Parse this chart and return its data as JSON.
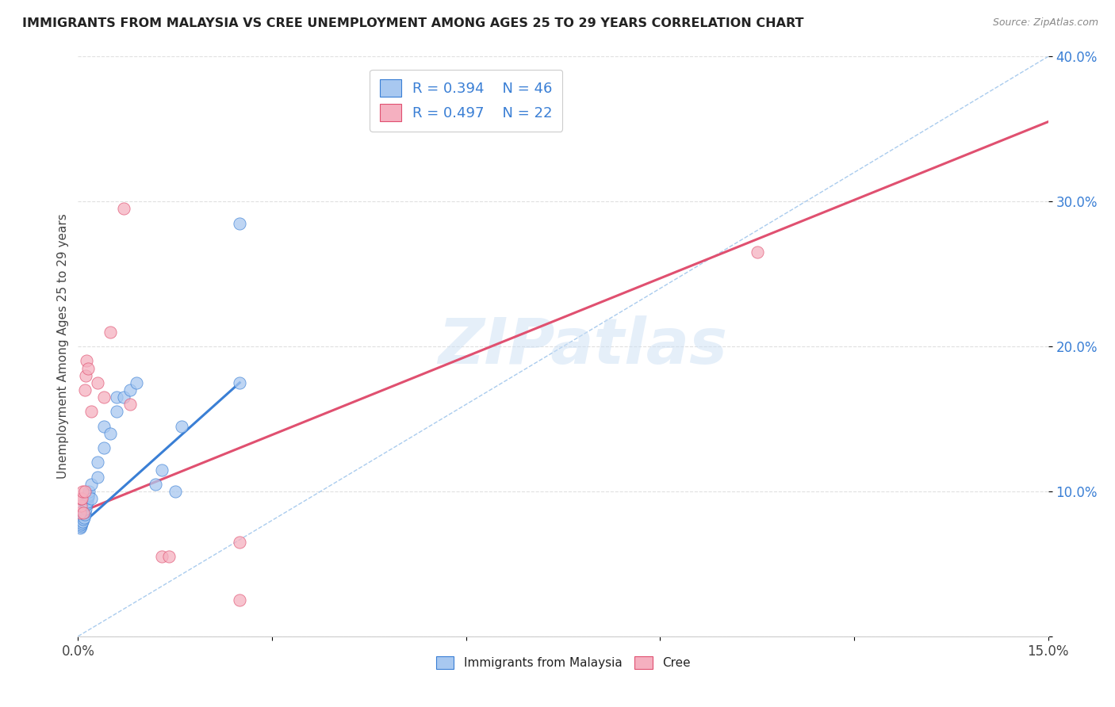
{
  "title": "IMMIGRANTS FROM MALAYSIA VS CREE UNEMPLOYMENT AMONG AGES 25 TO 29 YEARS CORRELATION CHART",
  "source": "Source: ZipAtlas.com",
  "ylabel": "Unemployment Among Ages 25 to 29 years",
  "x_min": 0.0,
  "x_max": 0.15,
  "y_min": 0.0,
  "y_max": 0.4,
  "x_ticks": [
    0.0,
    0.03,
    0.06,
    0.09,
    0.12,
    0.15
  ],
  "y_ticks": [
    0.0,
    0.1,
    0.2,
    0.3,
    0.4
  ],
  "blue_scatter_x": [
    0.0003,
    0.0003,
    0.0004,
    0.0004,
    0.0005,
    0.0005,
    0.0005,
    0.0006,
    0.0006,
    0.0007,
    0.0007,
    0.0008,
    0.0008,
    0.0009,
    0.001,
    0.001,
    0.001,
    0.0011,
    0.0011,
    0.0012,
    0.0012,
    0.0013,
    0.0013,
    0.0014,
    0.0015,
    0.0015,
    0.0016,
    0.0017,
    0.002,
    0.002,
    0.003,
    0.003,
    0.004,
    0.004,
    0.005,
    0.006,
    0.006,
    0.007,
    0.008,
    0.009,
    0.012,
    0.013,
    0.015,
    0.016,
    0.025,
    0.025
  ],
  "blue_scatter_y": [
    0.075,
    0.078,
    0.076,
    0.079,
    0.077,
    0.08,
    0.082,
    0.078,
    0.081,
    0.079,
    0.083,
    0.081,
    0.084,
    0.082,
    0.084,
    0.087,
    0.09,
    0.086,
    0.09,
    0.088,
    0.092,
    0.091,
    0.095,
    0.093,
    0.096,
    0.098,
    0.097,
    0.1,
    0.095,
    0.105,
    0.11,
    0.12,
    0.13,
    0.145,
    0.14,
    0.155,
    0.165,
    0.165,
    0.17,
    0.175,
    0.105,
    0.115,
    0.1,
    0.145,
    0.175,
    0.285
  ],
  "pink_scatter_x": [
    0.0003,
    0.0004,
    0.0005,
    0.0006,
    0.0007,
    0.0008,
    0.001,
    0.001,
    0.0012,
    0.0013,
    0.0015,
    0.002,
    0.003,
    0.004,
    0.005,
    0.007,
    0.008,
    0.013,
    0.014,
    0.025,
    0.025,
    0.105
  ],
  "pink_scatter_y": [
    0.085,
    0.09,
    0.095,
    0.095,
    0.1,
    0.085,
    0.1,
    0.17,
    0.18,
    0.19,
    0.185,
    0.155,
    0.175,
    0.165,
    0.21,
    0.295,
    0.16,
    0.055,
    0.055,
    0.065,
    0.025,
    0.265
  ],
  "blue_line_x": [
    0.0,
    0.025
  ],
  "blue_line_y": [
    0.075,
    0.175
  ],
  "pink_line_x": [
    0.0,
    0.15
  ],
  "pink_line_y": [
    0.085,
    0.355
  ],
  "diag_line_x": [
    0.0,
    0.15
  ],
  "diag_line_y": [
    0.0,
    0.4
  ],
  "blue_scatter_color": "#a8c8f0",
  "blue_line_color": "#3a7fd5",
  "pink_scatter_color": "#f5b0c0",
  "pink_line_color": "#e05070",
  "diag_line_color": "#aaccee",
  "r_blue": "0.394",
  "n_blue": "46",
  "r_pink": "0.497",
  "n_pink": "22",
  "watermark_text": "ZIPatlas",
  "legend_label_blue": "Immigrants from Malaysia",
  "legend_label_pink": "Cree",
  "background_color": "#ffffff",
  "grid_color": "#e0e0e0",
  "label_color_blue": "#3a7fd5",
  "title_color": "#222222",
  "source_color": "#888888",
  "ylabel_color": "#444444",
  "xtick_color": "#444444",
  "ytick_color": "#3a7fd5"
}
